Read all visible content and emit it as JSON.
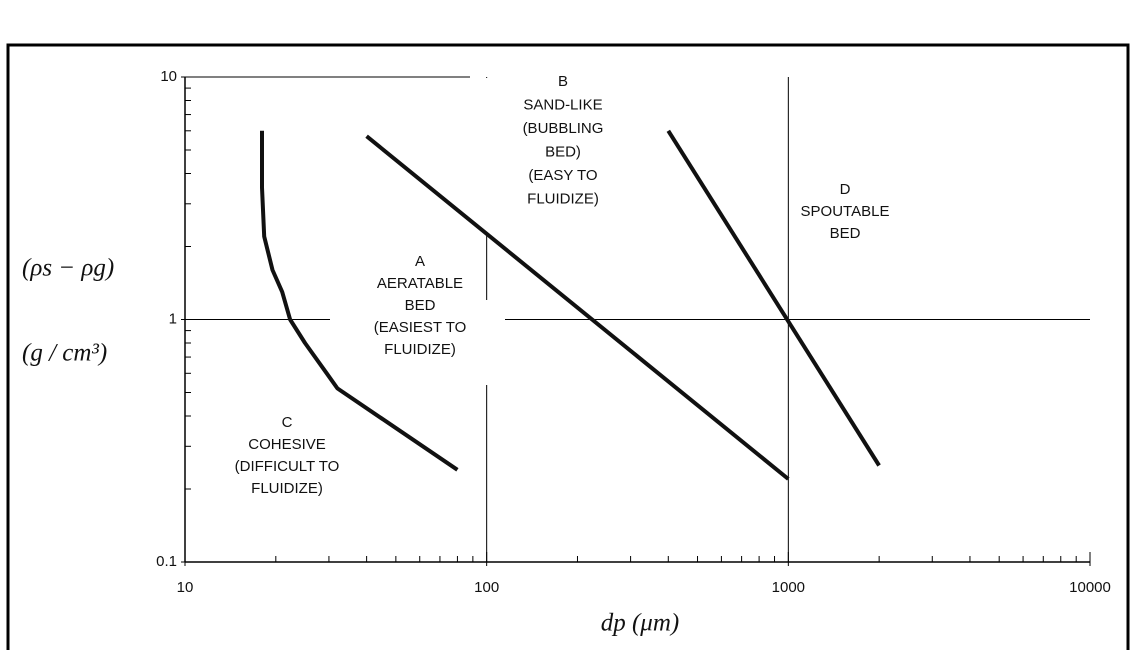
{
  "chart_data": {
    "type": "line",
    "xlabel": "dp (μm)",
    "ylabel": [
      "(ρs − ρg)",
      "(g / cm³)"
    ],
    "log_x": true,
    "log_y": true,
    "grid": true,
    "xlim": [
      10,
      10000
    ],
    "ylim": [
      0.1,
      10
    ],
    "xticks": [
      10,
      100,
      1000,
      10000
    ],
    "yticks": [
      0.1,
      1,
      10
    ],
    "xticks_minor": [
      20,
      30,
      40,
      50,
      60,
      70,
      80,
      90,
      200,
      300,
      400,
      500,
      600,
      700,
      800,
      900,
      2000,
      3000,
      4000,
      5000,
      6000,
      7000,
      8000,
      9000
    ],
    "yticks_minor": [
      0.2,
      0.3,
      0.4,
      0.5,
      0.6,
      0.7,
      0.8,
      0.9,
      2,
      3,
      4,
      5,
      6,
      7,
      8,
      9
    ],
    "series": [
      {
        "color": "#111111",
        "x": [
          18,
          18,
          18.3,
          19.5,
          21,
          22.3,
          25,
          29.5,
          32,
          80
        ],
        "values": [
          6,
          3.5,
          2.2,
          1.6,
          1.3,
          1,
          0.8,
          0.6,
          0.52,
          0.24
        ]
      },
      {
        "color": "#111111",
        "x": [
          40,
          1000
        ],
        "values": [
          5.7,
          0.22
        ]
      },
      {
        "color": "#111111",
        "x": [
          400,
          2000
        ],
        "values": [
          6,
          0.25
        ]
      }
    ],
    "annotations": [
      [
        "A",
        "AERATABLE",
        "BED",
        "(EASIEST TO",
        "FLUIDIZE)"
      ],
      [
        "B",
        "SAND-LIKE",
        "(BUBBLING",
        "BED)",
        "(EASY TO",
        "FLUIDIZE)"
      ],
      [
        "C",
        "COHESIVE",
        "(DIFFICULT TO",
        "FLUIDIZE)"
      ],
      [
        "D",
        "SPOUTABLE",
        "BED"
      ]
    ]
  }
}
